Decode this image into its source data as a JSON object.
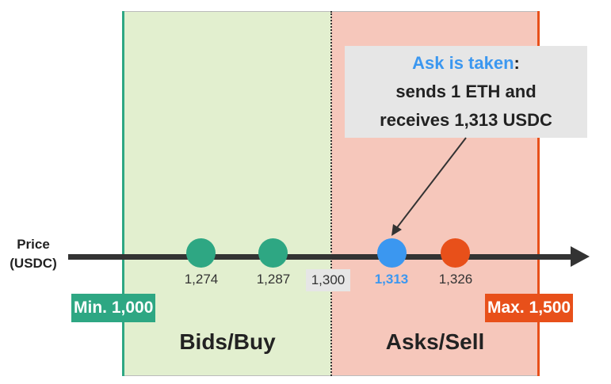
{
  "axis": {
    "label_line1": "Price",
    "label_line2": "(USDC)"
  },
  "zones": {
    "bids": {
      "title": "Bids/Buy",
      "color": "#e2efcf"
    },
    "asks": {
      "title": "Asks/Sell",
      "color": "#f6c7bb"
    }
  },
  "bounds": {
    "min_label": "Min. 1,000",
    "max_label": "Max. 1,500",
    "min_color": "#2ea783",
    "max_color": "#e8501a"
  },
  "mid_price": "1,300",
  "orders": [
    {
      "price": "1,274",
      "side": "bid",
      "color": "#2ea783"
    },
    {
      "price": "1,287",
      "side": "bid",
      "color": "#2ea783"
    },
    {
      "price": "1,313",
      "side": "ask",
      "color": "#3b97f0",
      "highlighted": true
    },
    {
      "price": "1,326",
      "side": "ask",
      "color": "#e8501a"
    }
  ],
  "callout": {
    "highlight": "Ask is taken",
    "suffix": ":",
    "line2": "sends 1 ETH and",
    "line3": "receives 1,313 USDC",
    "highlight_color": "#3b97f0"
  }
}
